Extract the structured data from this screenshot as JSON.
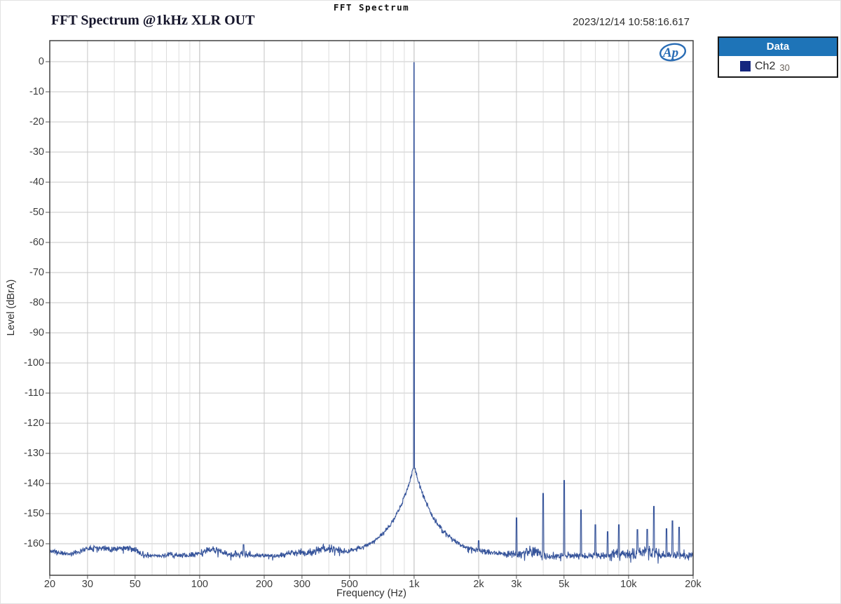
{
  "header": {
    "window_title": "FFT Spectrum",
    "chart_title": "FFT Spectrum @1kHz XLR OUT",
    "timestamp": "2023/12/14 10:58:16.617"
  },
  "logo": {
    "text": "Ap",
    "color": "#2a6db5"
  },
  "legend": {
    "title": "Data",
    "header_bg": "#1e74b8",
    "entries": [
      {
        "label": "Ch2",
        "value": "30",
        "swatch_color": "#14267f"
      }
    ]
  },
  "chart_data": {
    "type": "line",
    "title": "FFT Spectrum @1kHz XLR OUT",
    "xlabel": "Frequency (Hz)",
    "ylabel": "Level (dBrA)",
    "x_scale": "log",
    "xlim": [
      20,
      20000
    ],
    "ylim": [
      -170.5,
      7
    ],
    "grid": true,
    "legend_position": "top-right",
    "y_ticks": [
      {
        "db": 0,
        "label": "0"
      },
      {
        "db": -10,
        "label": "-10"
      },
      {
        "db": -20,
        "label": "-20"
      },
      {
        "db": -30,
        "label": "-30"
      },
      {
        "db": -40,
        "label": "-40"
      },
      {
        "db": -50,
        "label": "-50"
      },
      {
        "db": -60,
        "label": "-60"
      },
      {
        "db": -70,
        "label": "-70"
      },
      {
        "db": -80,
        "label": "-80"
      },
      {
        "db": -90,
        "label": "-90"
      },
      {
        "db": -100,
        "label": "-100"
      },
      {
        "db": -110,
        "label": "-110"
      },
      {
        "db": -120,
        "label": "-120"
      },
      {
        "db": -130,
        "label": "-130"
      },
      {
        "db": -140,
        "label": "-140"
      },
      {
        "db": -150,
        "label": "-150"
      },
      {
        "db": -160,
        "label": "-160"
      }
    ],
    "x_ticks": [
      {
        "f": 20,
        "label": "20"
      },
      {
        "f": 30,
        "label": "30"
      },
      {
        "f": 50,
        "label": "50"
      },
      {
        "f": 100,
        "label": "100"
      },
      {
        "f": 200,
        "label": "200"
      },
      {
        "f": 300,
        "label": "300"
      },
      {
        "f": 500,
        "label": "500"
      },
      {
        "f": 1000,
        "label": "1k"
      },
      {
        "f": 2000,
        "label": "2k"
      },
      {
        "f": 3000,
        "label": "3k"
      },
      {
        "f": 5000,
        "label": "5k"
      },
      {
        "f": 10000,
        "label": "10k"
      },
      {
        "f": 20000,
        "label": "20k"
      }
    ],
    "series": [
      {
        "name": "Ch2",
        "color": "#35539a",
        "fundamental": {
          "freq_hz": 1000,
          "level_db": -0.3
        },
        "harmonics": [
          [
            160,
            -160.3
          ],
          [
            2000,
            -159
          ],
          [
            3000,
            -151.4
          ],
          [
            4000,
            -143.3
          ],
          [
            5000,
            -139
          ],
          [
            6000,
            -148.8
          ],
          [
            7000,
            -153.7
          ],
          [
            8000,
            -156
          ],
          [
            9000,
            -153.7
          ],
          [
            11000,
            -155.3
          ],
          [
            12200,
            -155.2
          ],
          [
            13100,
            -147.6
          ],
          [
            15000,
            -155
          ],
          [
            16000,
            -152.4
          ],
          [
            17200,
            -154.5
          ]
        ],
        "noise_floor": {
          "left_db": -162.6,
          "right_db": -163.9,
          "wobble_db": 1.1,
          "jitter_left_db": 0.9,
          "jitter_right_db": 2.6,
          "seed": 11
        },
        "skirt": {
          "base_db": -164,
          "amp_db": 30,
          "tau_decades": 0.105
        }
      }
    ]
  }
}
